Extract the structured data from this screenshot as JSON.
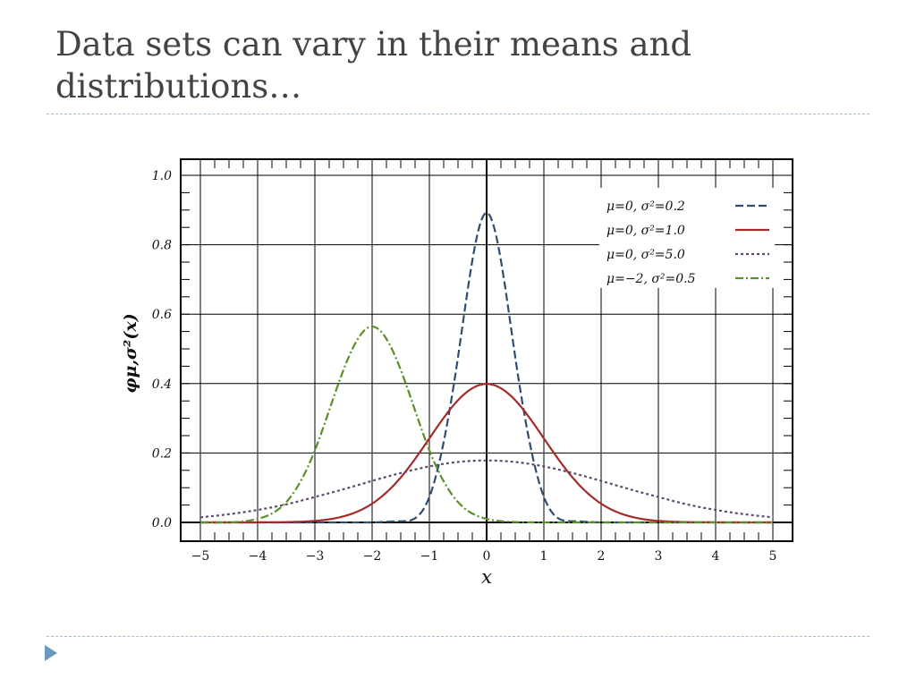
{
  "slide": {
    "title": "Data sets can vary in their means and distributions…"
  },
  "chart_data": {
    "type": "line",
    "xlabel": "x",
    "ylabel": "φμ,σ²(x)",
    "xlim": [
      -5,
      5
    ],
    "ylim": [
      0,
      1.0
    ],
    "x_ticks": [
      "−5",
      "−4",
      "−3",
      "−2",
      "−1",
      "0",
      "1",
      "2",
      "3",
      "4",
      "5"
    ],
    "y_ticks": [
      "0.0",
      "0.2",
      "0.4",
      "0.6",
      "0.8",
      "1.0"
    ],
    "grid": true,
    "legend_position": "top-right",
    "x": [
      -5,
      -4.5,
      -4,
      -3.5,
      -3,
      -2.5,
      -2,
      -1.5,
      -1,
      -0.5,
      0,
      0.5,
      1,
      1.5,
      2,
      2.5,
      3,
      3.5,
      4,
      4.5,
      5
    ],
    "series": [
      {
        "name": "μ=0, σ²=0.2",
        "color": "#2e4d70",
        "dash": "dashed",
        "values": [
          0,
          0,
          0,
          0,
          0,
          0,
          0,
          0.0034,
          0.0736,
          0.4762,
          0.8921,
          0.4762,
          0.0736,
          0.0034,
          0,
          0,
          0,
          0,
          0,
          0,
          0
        ]
      },
      {
        "name": "μ=0, σ²=1.0",
        "color": "#a52a2a",
        "dash": "solid",
        "values": [
          1.5e-06,
          1.6e-05,
          0.000134,
          0.00087,
          0.0044,
          0.0175,
          0.054,
          0.1295,
          0.242,
          0.3521,
          0.3989,
          0.3521,
          0.242,
          0.1295,
          0.054,
          0.0175,
          0.0044,
          0.00087,
          0.000134,
          1.6e-05,
          1.5e-06
        ]
      },
      {
        "name": "μ=0, σ²=5.0",
        "color": "#5e4b6e",
        "dash": "dotted",
        "values": [
          0.0146,
          0.0236,
          0.036,
          0.052,
          0.0732,
          0.0955,
          0.1196,
          0.1423,
          0.1614,
          0.1741,
          0.1784,
          0.1741,
          0.1614,
          0.1423,
          0.1196,
          0.0955,
          0.0732,
          0.052,
          0.036,
          0.0236,
          0.0146
        ]
      },
      {
        "name": "μ=−2, σ²=0.5",
        "color": "#5a8f29",
        "dash": "dashdot",
        "values": [
          0,
          2e-06,
          0.0103,
          0.0585,
          0.2076,
          0.4394,
          0.5642,
          0.4394,
          0.2076,
          0.0585,
          0.0103,
          0.0011,
          7.7e-05,
          0,
          0,
          0,
          0,
          0,
          0,
          0,
          0
        ]
      }
    ]
  }
}
